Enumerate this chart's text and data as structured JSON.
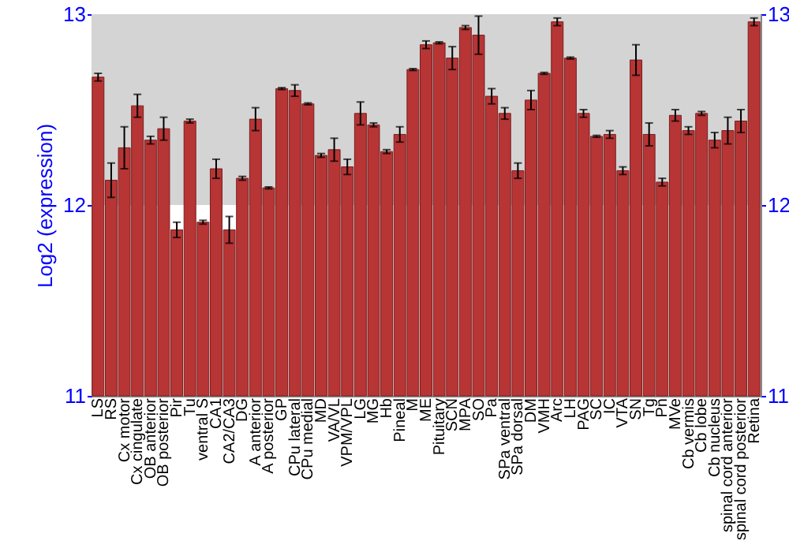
{
  "chart_data": {
    "type": "bar",
    "ylabel": "Log2 (expression)",
    "categories": [
      "LS",
      "RS",
      "Cx motor",
      "Cx cingulate",
      "OB anterior",
      "OB posterior",
      "Pir",
      "Tu",
      "ventral S",
      "CA1",
      "CA2/CA3",
      "DG",
      "A anterior",
      "A posterior",
      "GP",
      "CPu lateral",
      "CPu medial",
      "MD",
      "VA/VL",
      "VPM/VPL",
      "LG",
      "MG",
      "Hb",
      "Pineal",
      "M",
      "ME",
      "Pituitary",
      "SCN",
      "MPA",
      "SO",
      "Pa",
      "SPa ventral",
      "SPa dorsal",
      "DM",
      "VMH",
      "Arc",
      "LH",
      "PAG",
      "SC",
      "IC",
      "VTA",
      "SN",
      "Tg",
      "Pn",
      "MVe",
      "Cb vermis",
      "Cb lobe",
      "Cb nucleus",
      "spinal cord anterior",
      "spinal cord posterior",
      "Retina"
    ],
    "values": [
      12.67,
      12.13,
      12.3,
      12.52,
      12.34,
      12.4,
      11.87,
      12.44,
      11.91,
      12.19,
      11.87,
      12.14,
      12.45,
      12.09,
      12.61,
      12.6,
      12.53,
      12.26,
      12.29,
      12.2,
      12.48,
      12.42,
      12.28,
      12.37,
      12.71,
      12.84,
      12.85,
      12.77,
      12.93,
      12.89,
      12.57,
      12.48,
      12.18,
      12.55,
      12.69,
      12.96,
      12.77,
      12.48,
      12.36,
      12.37,
      12.18,
      12.76,
      12.37,
      12.12,
      12.47,
      12.39,
      12.48,
      12.34,
      12.39,
      12.44,
      12.96
    ],
    "errors": [
      0.02,
      0.09,
      0.11,
      0.06,
      0.02,
      0.06,
      0.04,
      0.01,
      0.01,
      0.05,
      0.07,
      0.01,
      0.06,
      0.005,
      0.005,
      0.03,
      0.005,
      0.01,
      0.06,
      0.04,
      0.06,
      0.01,
      0.01,
      0.04,
      0.005,
      0.02,
      0.005,
      0.06,
      0.01,
      0.1,
      0.04,
      0.03,
      0.04,
      0.05,
      0.005,
      0.02,
      0.005,
      0.02,
      0.005,
      0.02,
      0.02,
      0.08,
      0.06,
      0.02,
      0.03,
      0.02,
      0.01,
      0.04,
      0.07,
      0.06,
      0.02
    ],
    "color": "#b73535",
    "ylim": [
      11,
      13
    ],
    "yticks": [
      11,
      12,
      13
    ],
    "y2lim": [
      11,
      13
    ],
    "y2ticks": [
      11,
      12,
      13
    ],
    "bands": [
      {
        "axis": "y",
        "from": 12,
        "to": 13,
        "color": "#d4d4d4"
      }
    ]
  }
}
